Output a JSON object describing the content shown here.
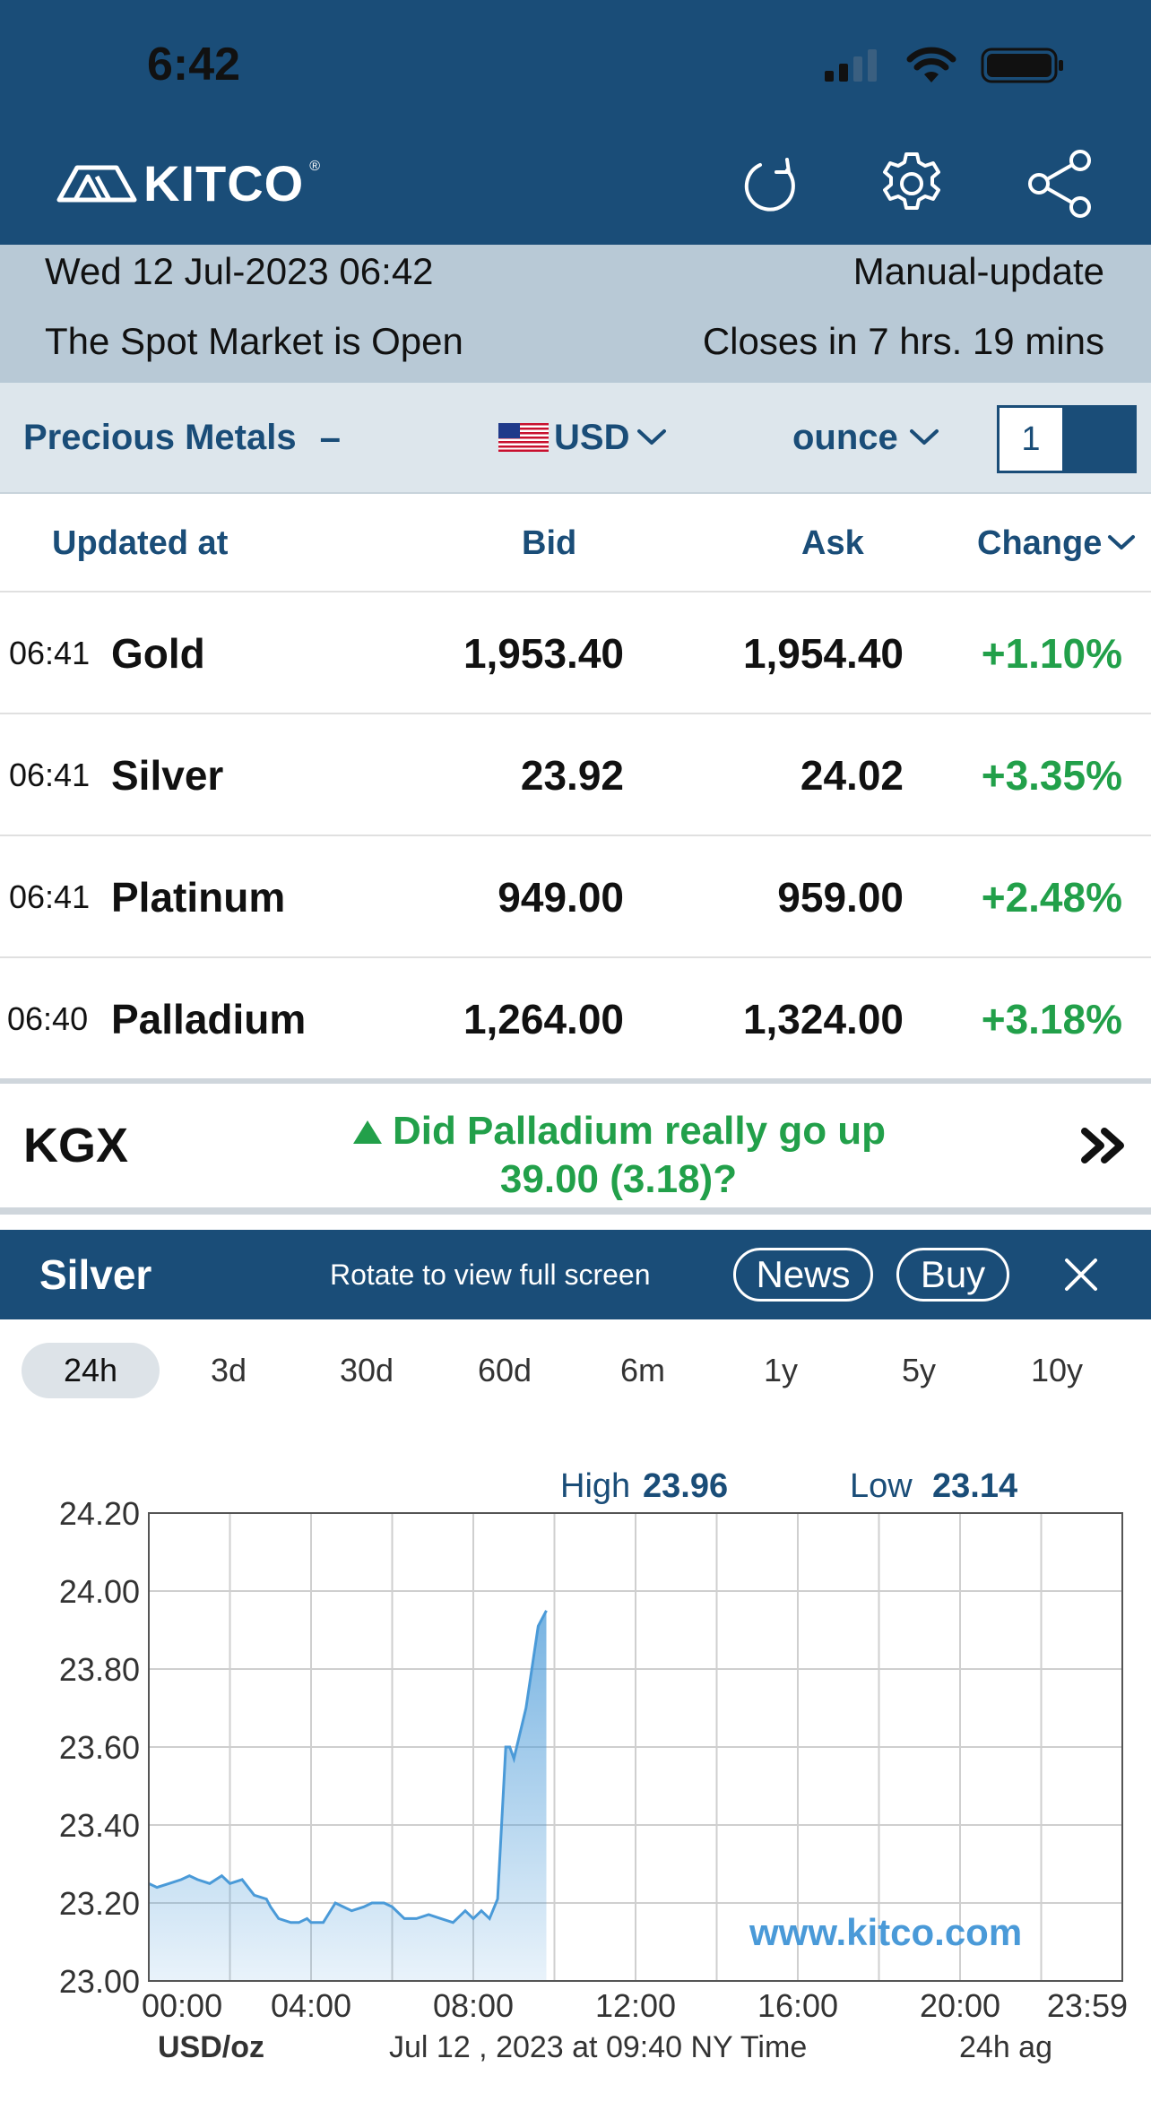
{
  "status_bar": {
    "time": "6:42",
    "icons": [
      "signal-icon",
      "wifi-icon",
      "battery-icon"
    ]
  },
  "header": {
    "brand": "KITCO",
    "brand_mark": "®",
    "actions": [
      "refresh-icon",
      "gear-icon",
      "share-icon"
    ]
  },
  "info": {
    "date": "Wed 12 Jul-2023 06:42",
    "update_mode": "Manual-update",
    "market_status": "The Spot Market is Open",
    "closes": "Closes in 7 hrs. 19 mins"
  },
  "filters": {
    "category": "Precious Metals",
    "category_toggle": "–",
    "currency": "USD",
    "unit": "ounce",
    "quantity": "1"
  },
  "table": {
    "headers": {
      "updated": "Updated at",
      "bid": "Bid",
      "ask": "Ask",
      "change": "Change"
    },
    "rows": [
      {
        "time": "06:41",
        "name": "Gold",
        "bid": "1,953.40",
        "ask": "1,954.40",
        "change": "+1.10%"
      },
      {
        "time": "06:41",
        "name": "Silver",
        "bid": "23.92",
        "ask": "24.02",
        "change": "+3.35%"
      },
      {
        "time": "06:41",
        "name": "Platinum",
        "bid": "949.00",
        "ask": "959.00",
        "change": "+2.48%"
      },
      {
        "time": "06:40",
        "name": "Palladium",
        "bid": "1,264.00",
        "ask": "1,324.00",
        "change": "+3.18%"
      }
    ]
  },
  "kgx": {
    "label": "KGX",
    "line1": "Did Palladium really go up",
    "line2": "39.00 (3.18)?"
  },
  "chart_panel": {
    "title": "Silver",
    "hint": "Rotate to view full screen",
    "news": "News",
    "buy": "Buy",
    "ranges": [
      "24h",
      "3d",
      "30d",
      "60d",
      "6m",
      "1y",
      "5y",
      "10y"
    ],
    "active_range": "24h"
  },
  "colors": {
    "brand": "#1a4d78",
    "info_bar": "#b8c9d6",
    "positive": "#22a04a",
    "line": "#4a9ad8"
  },
  "chart_data": {
    "type": "area",
    "high_label": "High",
    "high_value": "23.96",
    "low_label": "Low",
    "low_value": "23.14",
    "watermark": "www.kitco.com",
    "unit_label": "USD/oz",
    "timestamp": "Jul 12 , 2023 at 09:40 NY Time",
    "period_label": "24h ag",
    "y_ticks": [
      "24.20",
      "24.00",
      "23.80",
      "23.60",
      "23.40",
      "23.20",
      "23.00"
    ],
    "x_ticks": [
      "00:00",
      "04:00",
      "08:00",
      "12:00",
      "16:00",
      "20:00",
      "23:59"
    ],
    "ylim": [
      23.0,
      24.2
    ],
    "xlim": [
      0,
      24
    ],
    "grid": true,
    "series": [
      {
        "x": [
          0,
          0.2,
          0.5,
          0.8,
          1.0,
          1.2,
          1.5,
          1.8,
          2.0,
          2.3,
          2.6,
          2.9,
          3.0,
          3.2,
          3.5,
          3.7,
          3.9,
          4.0,
          4.3,
          4.6,
          5.0,
          5.3,
          5.5,
          5.8,
          6.0,
          6.3,
          6.6,
          6.9,
          7.2,
          7.5,
          7.8,
          8.0,
          8.2,
          8.4,
          8.6,
          8.8,
          8.9,
          9.0,
          9.3,
          9.6,
          9.8
        ],
        "y": [
          23.25,
          23.24,
          23.25,
          23.26,
          23.27,
          23.26,
          23.25,
          23.27,
          23.25,
          23.26,
          23.22,
          23.21,
          23.19,
          23.16,
          23.15,
          23.15,
          23.16,
          23.15,
          23.15,
          23.2,
          23.18,
          23.19,
          23.2,
          23.2,
          23.19,
          23.16,
          23.16,
          23.17,
          23.16,
          23.15,
          23.18,
          23.16,
          23.18,
          23.16,
          23.21,
          23.6,
          23.6,
          23.57,
          23.7,
          23.91,
          23.95
        ]
      }
    ]
  }
}
